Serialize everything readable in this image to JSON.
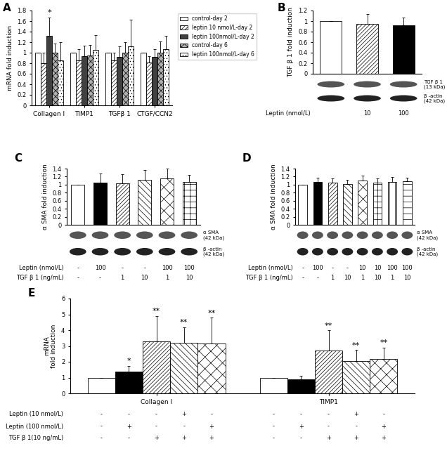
{
  "chart_data": [
    {
      "panel": "A",
      "type": "bar",
      "y_label": "mRNA fold induction",
      "categories": [
        "Collagen I",
        "TIMP1",
        "TGFβ 1",
        "CTGF/CCN2"
      ],
      "series": [
        {
          "name": "control-day 2",
          "color": "#ffffff",
          "values": [
            1,
            1,
            1,
            1
          ],
          "errors": [
            0,
            0,
            0,
            0
          ],
          "significance": [
            null,
            null,
            null,
            null
          ]
        },
        {
          "name": "leptin 10 nmol/L-day 2",
          "color": "#ffffff",
          "values": [
            0.8,
            0.85,
            0.85,
            0.82
          ],
          "errors": [
            0.2,
            0.22,
            0.15,
            0.12
          ],
          "significance": [
            null,
            null,
            null,
            null
          ]
        },
        {
          "name": "leptin 100nmol/L-day 2",
          "color": "#404040",
          "values": [
            1.32,
            0.93,
            0.92,
            0.92
          ],
          "errors": [
            0.35,
            0.2,
            0.2,
            0.15
          ],
          "significance": [
            "*",
            null,
            null,
            null
          ]
        },
        {
          "name": "control-day 6",
          "color": "#b0b0b0",
          "values": [
            1.0,
            0.95,
            1.0,
            1.0
          ],
          "errors": [
            0.18,
            0.2,
            0.2,
            0.22
          ],
          "significance": [
            null,
            null,
            null,
            null
          ]
        },
        {
          "name": "leptin 100nmol/L-day 6",
          "color": "#ffffff",
          "values": [
            0.85,
            1.05,
            1.12,
            1.07
          ],
          "errors": [
            0.35,
            0.28,
            0.5,
            0.25
          ],
          "significance": [
            null,
            null,
            null,
            null
          ]
        }
      ],
      "ylim": [
        0,
        1.8
      ],
      "yticks": [
        0,
        0.2,
        0.4,
        0.6,
        0.8,
        1,
        1.2,
        1.4,
        1.6,
        1.8
      ],
      "legend": "upper left"
    },
    {
      "panel": "B",
      "type": "bar",
      "y_label": "TGF β 1 fold induction",
      "values": [
        1,
        0.95,
        0.92
      ],
      "errors": [
        0,
        0.18,
        0.15
      ],
      "colors": [
        "#ffffff",
        "#ffffff",
        "#000000"
      ],
      "ylim": [
        0,
        1.2
      ],
      "yticks": [
        0,
        0.2,
        0.4,
        0.6,
        0.8,
        1,
        1.2
      ],
      "tick_labels": "y",
      "blot": [
        {
          "name": "TGF β 1",
          "size": "(13 kDa)"
        },
        {
          "name": "β -actin",
          "size": "(42 kDa)"
        }
      ],
      "conditions": [
        {
          "label": "Leptin (nmol/L)",
          "values": [
            null,
            "10",
            "100"
          ]
        }
      ]
    },
    {
      "panel": "C",
      "type": "bar",
      "y_label": "α SMA fold induction",
      "values": [
        1,
        1.05,
        1.04,
        1.12,
        1.15,
        1.07
      ],
      "errors": [
        0,
        0.22,
        0.22,
        0.25,
        0.25,
        0.18
      ],
      "colors": [
        "#ffffff",
        "#000000",
        "#ffffff",
        "#ffffff",
        "#ffffff",
        "#ffffff"
      ],
      "ylim": [
        0,
        1.4
      ],
      "yticks": [
        0,
        0.2,
        0.4,
        0.6,
        0.8,
        1,
        1.2,
        1.4
      ],
      "tick_labels": "y",
      "blot": [
        {
          "name": "α SMA",
          "size": "(42 kDa)"
        },
        {
          "name": "β -actin",
          "size": "(42 kDa)"
        }
      ],
      "conditions": [
        {
          "label": "Leptin (nmol/L)",
          "values": [
            "-",
            "100",
            "-",
            "-",
            "100",
            "100"
          ]
        },
        {
          "label": "TGF β 1 (ng/mL)",
          "values": [
            "-",
            "-",
            "1",
            "10",
            "1",
            "10"
          ]
        }
      ]
    },
    {
      "panel": "D",
      "type": "bar",
      "y_label": "α SMA fold induction",
      "values": [
        1,
        1.07,
        1.05,
        1.02,
        1.1,
        1.05,
        1.07,
        1.08
      ],
      "errors": [
        0,
        0.1,
        0.1,
        0.1,
        0.13,
        0.1,
        0.12,
        0.1
      ],
      "colors": [
        "#ffffff",
        "#000000",
        "#ffffff",
        "#ffffff",
        "#ffffff",
        "#ffffff",
        "#ffffff",
        "#ffffff"
      ],
      "ylim": [
        0,
        1.4
      ],
      "yticks": [
        0,
        0.2,
        0.4,
        0.6,
        0.8,
        1,
        1.2,
        1.4
      ],
      "tick_labels": "y",
      "blot": [
        {
          "name": "α SMA",
          "size": "(42 kDa)"
        },
        {
          "name": "β -actin",
          "size": "(42 kDa)"
        }
      ],
      "conditions": [
        {
          "label": "Leptin (nmol/L)",
          "values": [
            "-",
            "100",
            "-",
            "-",
            "10",
            "10",
            "100",
            "100"
          ]
        },
        {
          "label": "TGF β 1 (ng/mL)",
          "values": [
            "-",
            "-",
            "1",
            "10",
            "1",
            "10",
            "1",
            "10"
          ]
        }
      ]
    },
    {
      "panel": "E",
      "type": "bar",
      "y_label": "mRNA\nfold induction",
      "categories": [
        "Collagen I",
        "TIMP1"
      ],
      "series": [
        {
          "color": "#ffffff",
          "values": [
            1,
            1
          ],
          "errors": [
            0,
            0
          ],
          "significance": [
            null,
            null
          ]
        },
        {
          "color": "#000000",
          "values": [
            1.4,
            0.9
          ],
          "errors": [
            0.35,
            0.2
          ],
          "significance": [
            "*",
            null
          ]
        },
        {
          "color": "#ffffff",
          "values": [
            3.3,
            2.7
          ],
          "errors": [
            1.6,
            1.3
          ],
          "significance": [
            "**",
            "**"
          ]
        },
        {
          "color": "#ffffff",
          "values": [
            3.2,
            2.05
          ],
          "errors": [
            1.0,
            0.7
          ],
          "significance": [
            "**",
            "**"
          ]
        },
        {
          "color": "#ffffff",
          "values": [
            3.15,
            2.2
          ],
          "errors": [
            1.65,
            0.7
          ],
          "significance": [
            "**",
            "**"
          ]
        }
      ],
      "ylim": [
        0,
        6
      ],
      "yticks": [
        0,
        1,
        2,
        3,
        4,
        5,
        6
      ],
      "conditions": [
        {
          "label": "Leptin (10 nmol/L)",
          "values": [
            "-",
            "-",
            "-",
            "+",
            "-"
          ]
        },
        {
          "label": "Leptin (100 nmol/L)",
          "values": [
            "-",
            "+",
            "-",
            "-",
            "+"
          ]
        },
        {
          "label": "TGF β 1(10 ng/mL)",
          "values": [
            "-",
            "-",
            "+",
            "+",
            "+"
          ]
        }
      ]
    }
  ]
}
